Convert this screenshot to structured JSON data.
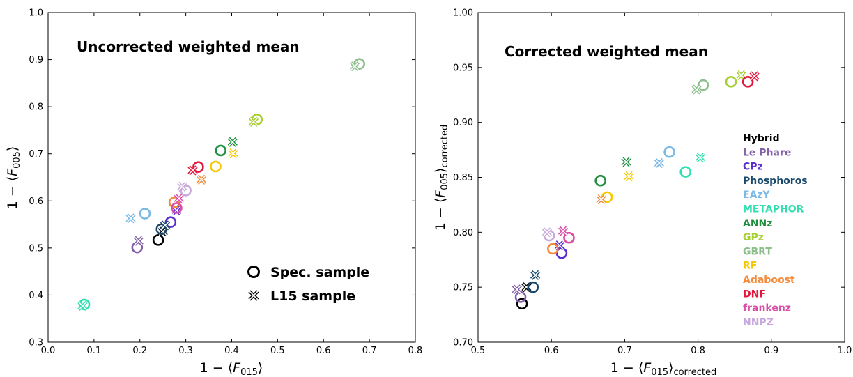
{
  "methods": [
    {
      "name": "Hybrid",
      "color": "#000000"
    },
    {
      "name": "Le Phare",
      "color": "#8160a8"
    },
    {
      "name": "CPz",
      "color": "#5b2fd0"
    },
    {
      "name": "Phosphoros",
      "color": "#1a4a6b"
    },
    {
      "name": "EAzY",
      "color": "#7ab8e6"
    },
    {
      "name": "METAPHOR",
      "color": "#2fdfb0"
    },
    {
      "name": "ANNz",
      "color": "#1f8f3f"
    },
    {
      "name": "GPz",
      "color": "#a6cf35"
    },
    {
      "name": "GBRT",
      "color": "#8cbf8c"
    },
    {
      "name": "RF",
      "color": "#f5c800"
    },
    {
      "name": "Adaboost",
      "color": "#f28c3c"
    },
    {
      "name": "DNF",
      "color": "#e3173b"
    },
    {
      "name": "frankenz",
      "color": "#d94fa8"
    },
    {
      "name": "NNPZ",
      "color": "#c8a8dc"
    }
  ],
  "marker_legend": {
    "spec": "Spec. sample",
    "l15": "L15 sample"
  },
  "chart_data": [
    {
      "type": "scatter",
      "title": "Uncorrected weighted mean",
      "xlabel": "1 − ⟨F015⟩",
      "ylabel": "1 − ⟨F005⟩",
      "xlim": [
        0.0,
        0.8
      ],
      "ylim": [
        0.3,
        1.0
      ],
      "xticks": [
        "0.0",
        "0.1",
        "0.2",
        "0.3",
        "0.4",
        "0.5",
        "0.6",
        "0.7",
        "0.8"
      ],
      "yticks": [
        "0.3",
        "0.4",
        "0.5",
        "0.6",
        "0.7",
        "0.8",
        "0.9",
        "1.0"
      ],
      "grid": false,
      "legend_position": "bottom-right",
      "series": [
        {
          "name": "Hybrid",
          "spec": [
            0.24,
            0.517
          ],
          "l15": [
            0.25,
            0.535
          ]
        },
        {
          "name": "Le Phare",
          "spec": [
            0.194,
            0.501
          ],
          "l15": [
            0.197,
            0.515
          ]
        },
        {
          "name": "CPz",
          "spec": [
            0.267,
            0.555
          ],
          "l15": [
            0.28,
            0.58
          ]
        },
        {
          "name": "Phosphoros",
          "spec": [
            0.247,
            0.54
          ],
          "l15": [
            0.255,
            0.548
          ]
        },
        {
          "name": "EAzY",
          "spec": [
            0.211,
            0.573
          ],
          "l15": [
            0.18,
            0.563
          ]
        },
        {
          "name": "METAPHOR",
          "spec": [
            0.079,
            0.38
          ],
          "l15": [
            0.075,
            0.377
          ]
        },
        {
          "name": "ANNz",
          "spec": [
            0.376,
            0.707
          ],
          "l15": [
            0.402,
            0.725
          ]
        },
        {
          "name": "GPz",
          "spec": [
            0.455,
            0.773
          ],
          "l15": [
            0.448,
            0.768
          ]
        },
        {
          "name": "GBRT",
          "spec": [
            0.678,
            0.891
          ],
          "l15": [
            0.668,
            0.886
          ]
        },
        {
          "name": "RF",
          "spec": [
            0.365,
            0.673
          ],
          "l15": [
            0.403,
            0.701
          ]
        },
        {
          "name": "Adaboost",
          "spec": [
            0.275,
            0.597
          ],
          "l15": [
            0.334,
            0.645
          ]
        },
        {
          "name": "DNF",
          "spec": [
            0.327,
            0.672
          ],
          "l15": [
            0.315,
            0.665
          ]
        },
        {
          "name": "frankenz",
          "spec": [
            0.28,
            0.585
          ],
          "l15": [
            0.285,
            0.605
          ]
        },
        {
          "name": "NNPZ",
          "spec": [
            0.3,
            0.622
          ],
          "l15": [
            0.292,
            0.63
          ]
        }
      ]
    },
    {
      "type": "scatter",
      "title": "Corrected weighted mean",
      "xlabel": "1 − ⟨F015⟩corrected",
      "ylabel": "1 − ⟨F005⟩corrected",
      "xlim": [
        0.5,
        1.0
      ],
      "ylim": [
        0.7,
        1.0
      ],
      "xticks": [
        "0.5",
        "0.6",
        "0.7",
        "0.8",
        "0.9",
        "1.0"
      ],
      "yticks": [
        "0.70",
        "0.75",
        "0.80",
        "0.85",
        "0.90",
        "0.95",
        "1.00"
      ],
      "grid": false,
      "legend_position": "right",
      "series": [
        {
          "name": "Hybrid",
          "spec": [
            0.56,
            0.735
          ],
          "l15": [
            0.566,
            0.75
          ]
        },
        {
          "name": "Le Phare",
          "spec": [
            0.558,
            0.741
          ],
          "l15": [
            0.553,
            0.748
          ]
        },
        {
          "name": "CPz",
          "spec": [
            0.614,
            0.781
          ],
          "l15": [
            0.611,
            0.788
          ]
        },
        {
          "name": "Phosphoros",
          "spec": [
            0.575,
            0.75
          ],
          "l15": [
            0.578,
            0.761
          ]
        },
        {
          "name": "EAzY",
          "spec": [
            0.761,
            0.873
          ],
          "l15": [
            0.747,
            0.863
          ]
        },
        {
          "name": "METAPHOR",
          "spec": [
            0.783,
            0.855
          ],
          "l15": [
            0.803,
            0.868
          ]
        },
        {
          "name": "ANNz",
          "spec": [
            0.667,
            0.847
          ],
          "l15": [
            0.702,
            0.864
          ]
        },
        {
          "name": "GPz",
          "spec": [
            0.845,
            0.937
          ],
          "l15": [
            0.859,
            0.943
          ]
        },
        {
          "name": "GBRT",
          "spec": [
            0.807,
            0.934
          ],
          "l15": [
            0.798,
            0.93
          ]
        },
        {
          "name": "RF",
          "spec": [
            0.676,
            0.832
          ],
          "l15": [
            0.706,
            0.851
          ]
        },
        {
          "name": "Adaboost",
          "spec": [
            0.602,
            0.785
          ],
          "l15": [
            0.668,
            0.83
          ]
        },
        {
          "name": "DNF",
          "spec": [
            0.868,
            0.937
          ],
          "l15": [
            0.877,
            0.942
          ]
        },
        {
          "name": "frankenz",
          "spec": [
            0.624,
            0.795
          ],
          "l15": [
            0.616,
            0.801
          ]
        },
        {
          "name": "NNPZ",
          "spec": [
            0.597,
            0.797
          ],
          "l15": [
            0.594,
            0.8
          ]
        }
      ]
    }
  ]
}
